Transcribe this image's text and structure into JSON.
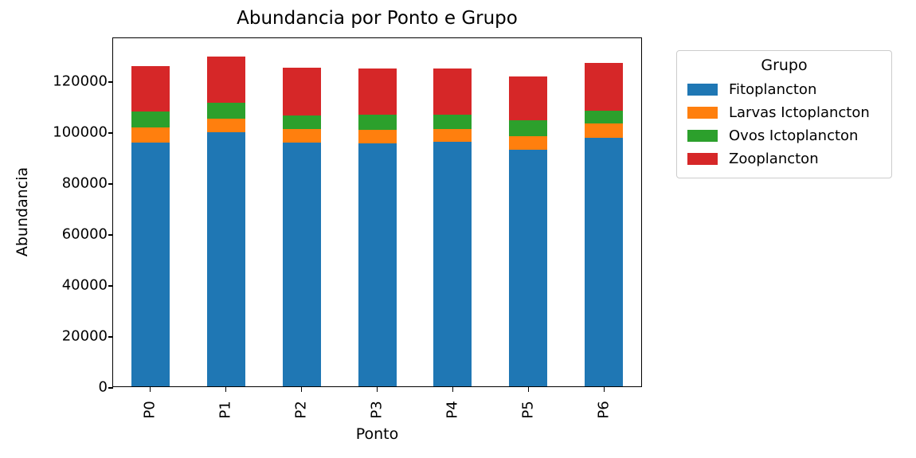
{
  "chart_data": {
    "type": "bar",
    "stacked": true,
    "title": "Abundancia por Ponto e Grupo",
    "xlabel": "Ponto",
    "ylabel": "Abundancia",
    "categories": [
      "P0",
      "P1",
      "P2",
      "P3",
      "P4",
      "P5",
      "P6"
    ],
    "series": [
      {
        "name": "Fitoplancton",
        "color": "#1f77b4",
        "values": [
          95700,
          99700,
          95500,
          95300,
          95800,
          92700,
          97400
        ]
      },
      {
        "name": "Larvas Ictoplancton",
        "color": "#ff7f0e",
        "values": [
          6000,
          5400,
          5300,
          5200,
          5300,
          5400,
          5700
        ]
      },
      {
        "name": "Ovos Ictoplancton",
        "color": "#2ca02c",
        "values": [
          6100,
          6200,
          5600,
          6100,
          5500,
          6300,
          4900
        ]
      },
      {
        "name": "Zooplancton",
        "color": "#d62728",
        "values": [
          17800,
          18100,
          18700,
          18200,
          18000,
          17300,
          18900
        ]
      }
    ],
    "totals": [
      125600,
      129400,
      125100,
      124800,
      124600,
      121700,
      126900
    ],
    "ylim": [
      0,
      137200
    ],
    "yticks": [
      0,
      20000,
      40000,
      60000,
      80000,
      100000,
      120000
    ],
    "xtick_rotation_deg": 90,
    "legend_title": "Grupo",
    "legend_position": "upper right, outside plot",
    "grid": false,
    "plot_background": "#ffffff",
    "spine_color": "#000000"
  }
}
